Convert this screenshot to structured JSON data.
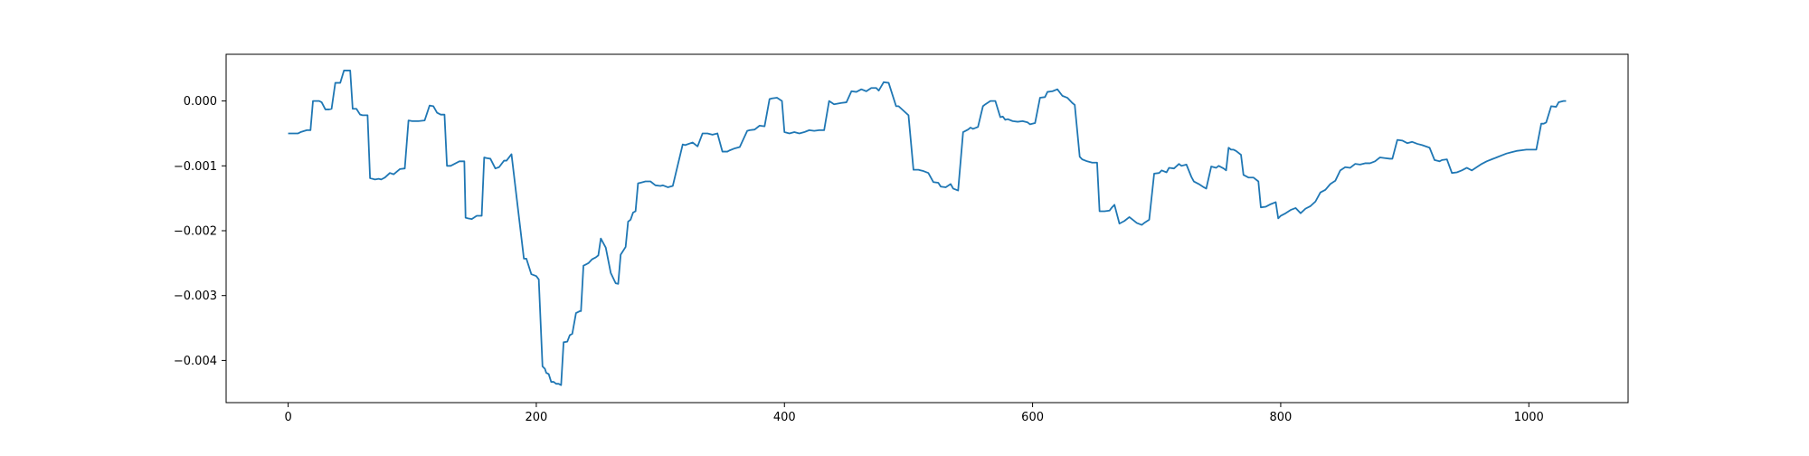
{
  "chart_data": {
    "type": "line",
    "title": "",
    "xlabel": "",
    "ylabel": "",
    "xlim": [
      -50,
      1080
    ],
    "ylim": [
      -0.00465,
      0.00072
    ],
    "grid": false,
    "legend": "none",
    "x_ticks": [
      0,
      200,
      400,
      600,
      800,
      1000
    ],
    "x_tick_labels": [
      "0",
      "200",
      "400",
      "600",
      "800",
      "1000"
    ],
    "y_ticks": [
      0.0,
      -0.001,
      -0.002,
      -0.003,
      -0.004
    ],
    "y_tick_labels": [
      "0.000",
      "−0.001",
      "−0.002",
      "−0.003",
      "−0.004"
    ],
    "colors": {
      "line": "#1f77b4",
      "axes": "#000000",
      "background": "#ffffff"
    },
    "series": [
      {
        "name": "",
        "x": [
          0,
          5,
          8,
          10,
          15,
          18,
          20,
          25,
          27,
          30,
          33,
          35,
          38,
          42,
          45,
          48,
          50,
          52,
          55,
          58,
          60,
          64,
          66,
          70,
          73,
          75,
          78,
          82,
          85,
          90,
          94,
          97,
          100,
          105,
          110,
          114,
          117,
          120,
          123,
          126,
          128,
          131,
          134,
          138,
          142,
          143,
          145,
          148,
          152,
          154,
          156,
          158,
          160,
          163,
          167,
          170,
          174,
          176,
          180,
          190,
          192,
          196,
          200,
          202,
          205,
          207,
          208,
          210,
          212,
          214,
          216,
          218,
          220,
          222,
          225,
          227,
          229,
          232,
          235,
          236,
          238,
          240,
          242,
          245,
          248,
          250,
          252,
          256,
          260,
          264,
          266,
          268,
          272,
          274,
          276,
          278,
          280,
          282,
          284,
          286,
          288,
          290,
          292,
          296,
          300,
          302,
          306,
          310,
          318,
          320,
          326,
          330,
          334,
          338,
          342,
          346,
          350,
          354,
          356,
          360,
          364,
          370,
          372,
          376,
          380,
          384,
          388,
          390,
          394,
          398,
          400,
          404,
          408,
          412,
          416,
          420,
          424,
          428,
          432,
          436,
          440,
          446,
          450,
          454,
          458,
          462,
          466,
          470,
          474,
          476,
          480,
          484,
          490,
          492,
          496,
          500,
          504,
          508,
          510,
          512,
          516,
          520,
          524,
          526,
          530,
          534,
          536,
          540,
          544,
          548,
          550,
          552,
          556,
          560,
          562,
          566,
          570,
          574,
          576,
          578,
          580,
          584,
          588,
          592,
          596,
          598,
          602,
          606,
          610,
          612,
          616,
          620,
          624,
          628,
          632,
          634,
          638,
          640,
          644,
          648,
          652,
          654,
          658,
          662,
          664,
          666,
          670,
          674,
          678,
          680,
          684,
          688,
          690,
          694,
          698,
          702,
          704,
          708,
          710,
          714,
          718,
          720,
          724,
          728,
          730,
          734,
          738,
          740,
          744,
          748,
          750,
          754,
          756,
          758,
          760,
          762,
          764,
          766,
          768,
          770,
          774,
          778,
          782,
          784,
          788,
          792,
          796,
          798,
          800,
          804,
          808,
          812,
          816,
          820,
          824,
          828,
          832,
          836,
          840,
          844,
          848,
          852,
          856,
          860,
          864,
          868,
          872,
          876,
          880,
          884,
          888,
          890,
          894,
          898,
          902,
          906,
          910,
          914,
          920,
          924,
          928,
          930,
          934,
          938,
          942,
          946,
          950,
          954,
          958,
          962,
          966,
          970,
          974,
          978,
          982,
          986,
          990,
          994,
          998,
          1000,
          1002,
          1006,
          1010,
          1012,
          1014,
          1018,
          1022,
          1024,
          1028,
          1030
        ],
        "y": [
          -0.0005,
          -0.0005,
          -0.0005,
          -0.00048,
          -0.00045,
          -0.00045,
          0.0,
          0.0,
          -2e-05,
          -0.00013,
          -0.00013,
          -0.00012,
          0.00028,
          0.00028,
          0.00047,
          0.00047,
          0.00047,
          -0.00012,
          -0.00012,
          -0.00021,
          -0.00022,
          -0.00022,
          -0.00119,
          -0.00121,
          -0.0012,
          -0.00121,
          -0.00118,
          -0.00111,
          -0.00113,
          -0.00105,
          -0.00104,
          -0.0003,
          -0.00031,
          -0.00031,
          -0.0003,
          -7e-05,
          -8e-05,
          -0.00018,
          -0.00021,
          -0.00021,
          -0.001,
          -0.001,
          -0.00097,
          -0.00093,
          -0.00093,
          -0.0018,
          -0.00181,
          -0.00182,
          -0.00177,
          -0.00177,
          -0.00177,
          -0.00087,
          -0.00088,
          -0.00089,
          -0.00104,
          -0.00102,
          -0.00092,
          -0.00092,
          -0.00082,
          -0.00243,
          -0.00243,
          -0.00267,
          -0.0027,
          -0.00275,
          -0.00409,
          -0.00413,
          -0.00419,
          -0.00421,
          -0.00433,
          -0.00433,
          -0.00436,
          -0.00436,
          -0.00438,
          -0.00372,
          -0.00371,
          -0.00361,
          -0.00359,
          -0.00327,
          -0.00324,
          -0.00324,
          -0.00254,
          -0.00252,
          -0.0025,
          -0.00244,
          -0.00241,
          -0.00238,
          -0.00212,
          -0.00226,
          -0.00265,
          -0.00281,
          -0.00282,
          -0.00237,
          -0.00225,
          -0.00186,
          -0.00183,
          -0.00172,
          -0.0017,
          -0.00127,
          -0.00126,
          -0.00125,
          -0.00124,
          -0.00124,
          -0.00124,
          -0.0013,
          -0.00131,
          -0.0013,
          -0.00133,
          -0.00131,
          -0.00067,
          -0.00068,
          -0.00064,
          -0.0007,
          -0.0005,
          -0.0005,
          -0.00052,
          -0.0005,
          -0.00078,
          -0.00078,
          -0.00076,
          -0.00073,
          -0.00071,
          -0.00046,
          -0.00045,
          -0.00044,
          -0.00038,
          -0.00039,
          3e-05,
          4e-05,
          5e-05,
          0.0,
          -0.00048,
          -0.0005,
          -0.00048,
          -0.0005,
          -0.00048,
          -0.00045,
          -0.00046,
          -0.00045,
          -0.00045,
          0.0,
          -5e-05,
          -3e-05,
          -2e-05,
          0.00015,
          0.00014,
          0.00018,
          0.00015,
          0.0002,
          0.0002,
          0.00016,
          0.00029,
          0.00028,
          -8e-05,
          -8e-05,
          -0.00015,
          -0.00022,
          -0.00106,
          -0.00106,
          -0.00107,
          -0.00108,
          -0.00111,
          -0.00125,
          -0.00126,
          -0.00132,
          -0.00133,
          -0.00128,
          -0.00135,
          -0.00138,
          -0.00048,
          -0.00044,
          -0.00041,
          -0.00043,
          -0.0004,
          -8e-05,
          -5e-05,
          0.0,
          0.0,
          -0.00025,
          -0.00024,
          -0.00029,
          -0.00028,
          -0.00031,
          -0.00032,
          -0.00031,
          -0.00033,
          -0.00036,
          -0.00034,
          5e-05,
          6e-05,
          0.00014,
          0.00015,
          0.00018,
          8e-05,
          5e-05,
          -3e-05,
          -6e-05,
          -0.00086,
          -0.0009,
          -0.00093,
          -0.00095,
          -0.00095,
          -0.0017,
          -0.0017,
          -0.00169,
          -0.00164,
          -0.0016,
          -0.00189,
          -0.00185,
          -0.00179,
          -0.00182,
          -0.00188,
          -0.00191,
          -0.00188,
          -0.00183,
          -0.00112,
          -0.00111,
          -0.00107,
          -0.0011,
          -0.00103,
          -0.00104,
          -0.00097,
          -0.001,
          -0.00098,
          -0.00117,
          -0.00124,
          -0.00128,
          -0.00133,
          -0.00135,
          -0.00101,
          -0.00103,
          -0.001,
          -0.00104,
          -0.00107,
          -0.00072,
          -0.00075,
          -0.00075,
          -0.00077,
          -0.0008,
          -0.00083,
          -0.00114,
          -0.00118,
          -0.00118,
          -0.00124,
          -0.00164,
          -0.00163,
          -0.00159,
          -0.00156,
          -0.00181,
          -0.00177,
          -0.00173,
          -0.00168,
          -0.00165,
          -0.00173,
          -0.00166,
          -0.00162,
          -0.00155,
          -0.00141,
          -0.00137,
          -0.00128,
          -0.00123,
          -0.00107,
          -0.00102,
          -0.00103,
          -0.00097,
          -0.00098,
          -0.00096,
          -0.00096,
          -0.00093,
          -0.00087,
          -0.00088,
          -0.00089,
          -0.00089,
          -0.0006,
          -0.00061,
          -0.00065,
          -0.00063,
          -0.00066,
          -0.00068,
          -0.00072,
          -0.00091,
          -0.00093,
          -0.00091,
          -0.0009,
          -0.00111,
          -0.0011,
          -0.00107,
          -0.00103,
          -0.00107,
          -0.00102,
          -0.00097,
          -0.00093,
          -0.0009,
          -0.00087,
          -0.00084,
          -0.00081,
          -0.00079,
          -0.00077,
          -0.00076,
          -0.00075,
          -0.00075,
          -0.00075,
          -0.00075,
          -0.00035,
          -0.00035,
          -0.00033,
          -8e-05,
          -9e-05,
          -2e-05,
          0.0,
          0.0
        ]
      }
    ]
  }
}
